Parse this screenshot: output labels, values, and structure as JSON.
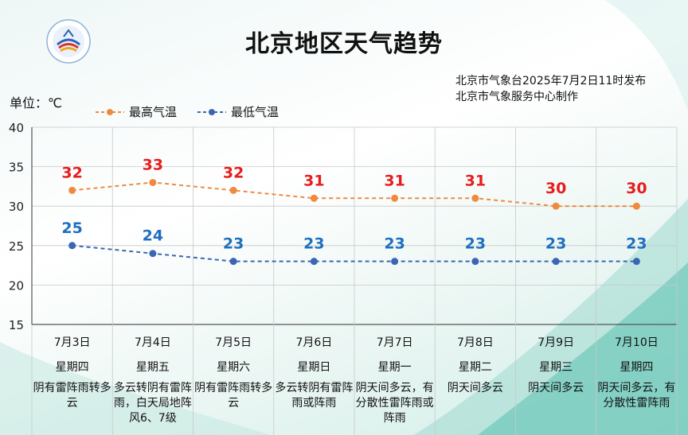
{
  "header": {
    "title": "北京地区天气趋势",
    "publisher_line1": "北京市气象台2025年7月2日11时发布",
    "publisher_line2": "北京市气象服务中心制作",
    "logo_icon": "meteorological-service-logo-icon"
  },
  "chart_data": {
    "type": "line",
    "unit_label": "单位：℃",
    "ylim": [
      15,
      40
    ],
    "yticks": [
      "15",
      "20",
      "25",
      "30",
      "35",
      "40"
    ],
    "grid": true,
    "legend_position": "top-left",
    "categories": [
      "7月3日",
      "7月4日",
      "7月5日",
      "7月6日",
      "7月7日",
      "7月8日",
      "7月9日",
      "7月10日"
    ],
    "weekdays": [
      "星期四",
      "星期五",
      "星期六",
      "星期日",
      "星期一",
      "星期二",
      "星期三",
      "星期四"
    ],
    "weather": [
      "阴有雷阵雨转多云",
      "多云转阴有雷阵雨，白天局地阵风6、7级",
      "阴有雷阵雨转多云",
      "多云转阴有雷阵雨或阵雨",
      "阴天间多云，有分散性雷阵雨或阵雨",
      "阴天间多云",
      "阴天间多云",
      "阴天间多云，有分散性雷阵雨"
    ],
    "series": [
      {
        "name": "最高气温",
        "values": [
          32,
          33,
          32,
          31,
          31,
          31,
          30,
          30
        ],
        "line_color": "#ef8a3e",
        "label_color": "#e81c1c"
      },
      {
        "name": "最低气温",
        "values": [
          25,
          24,
          23,
          23,
          23,
          23,
          23,
          23
        ],
        "line_color": "#3a66b5",
        "label_color": "#1f6fc0"
      }
    ]
  }
}
